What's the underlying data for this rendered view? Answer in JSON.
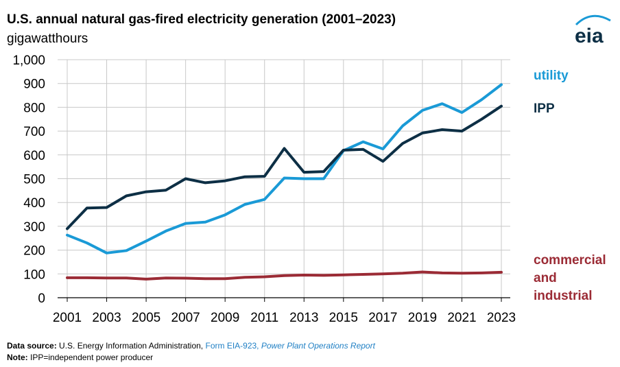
{
  "header": {
    "title": "U.S. annual natural gas-fired electricity generation (2001–2023)",
    "unit": "gigawatthours",
    "logo_text": "eia"
  },
  "footer": {
    "source_label": "Data source:",
    "source_org": "U.S. Energy Information Administration, ",
    "source_form": "Form EIA-923, ",
    "source_report": "Power Plant Operations Report",
    "note_label": "Note:",
    "note_text": "IPP=independent power producer"
  },
  "colors": {
    "utility": "#1a9ad6",
    "ipp": "#0d2f45",
    "commercial": "#9b2b35",
    "grid": "#c8c8c8",
    "link": "#1f7fc4"
  },
  "chart_data": {
    "type": "line",
    "title": "U.S. annual natural gas-fired electricity generation (2001–2023)",
    "ylabel": "gigawatthours",
    "xlabel": "",
    "ylim": [
      0,
      1000
    ],
    "yticks": [
      0,
      100,
      200,
      300,
      400,
      500,
      600,
      700,
      800,
      900,
      1000
    ],
    "ytick_labels": [
      "0",
      "100",
      "200",
      "300",
      "400",
      "500",
      "600",
      "700",
      "800",
      "900",
      "1,000"
    ],
    "xtick_labels": [
      "2001",
      "2003",
      "2005",
      "2007",
      "2009",
      "2011",
      "2013",
      "2015",
      "2017",
      "2019",
      "2021",
      "2023"
    ],
    "x": [
      2001,
      2002,
      2003,
      2004,
      2005,
      2006,
      2007,
      2008,
      2009,
      2010,
      2011,
      2012,
      2013,
      2014,
      2015,
      2016,
      2017,
      2018,
      2019,
      2020,
      2021,
      2022,
      2023
    ],
    "grid": true,
    "legend": "right, labels beside line ends",
    "series": [
      {
        "name": "utility",
        "legend_label": [
          "utility"
        ],
        "color": "#1a9ad6",
        "values": [
          263,
          230,
          188,
          198,
          238,
          280,
          312,
          318,
          348,
          392,
          413,
          503,
          500,
          500,
          618,
          655,
          625,
          722,
          787,
          815,
          778,
          832,
          895
        ]
      },
      {
        "name": "IPP",
        "legend_label": [
          "IPP"
        ],
        "color": "#0d2f45",
        "values": [
          290,
          377,
          379,
          428,
          445,
          452,
          500,
          483,
          491,
          508,
          510,
          627,
          527,
          530,
          620,
          623,
          573,
          648,
          692,
          706,
          700,
          750,
          805
        ]
      },
      {
        "name": "commercial and industrial",
        "legend_label": [
          "commercial",
          "and",
          "industrial"
        ],
        "color": "#9b2b35",
        "values": [
          84,
          84,
          83,
          83,
          78,
          83,
          82,
          80,
          80,
          86,
          88,
          93,
          95,
          94,
          96,
          98,
          100,
          103,
          108,
          104,
          103,
          104,
          107
        ]
      }
    ]
  }
}
